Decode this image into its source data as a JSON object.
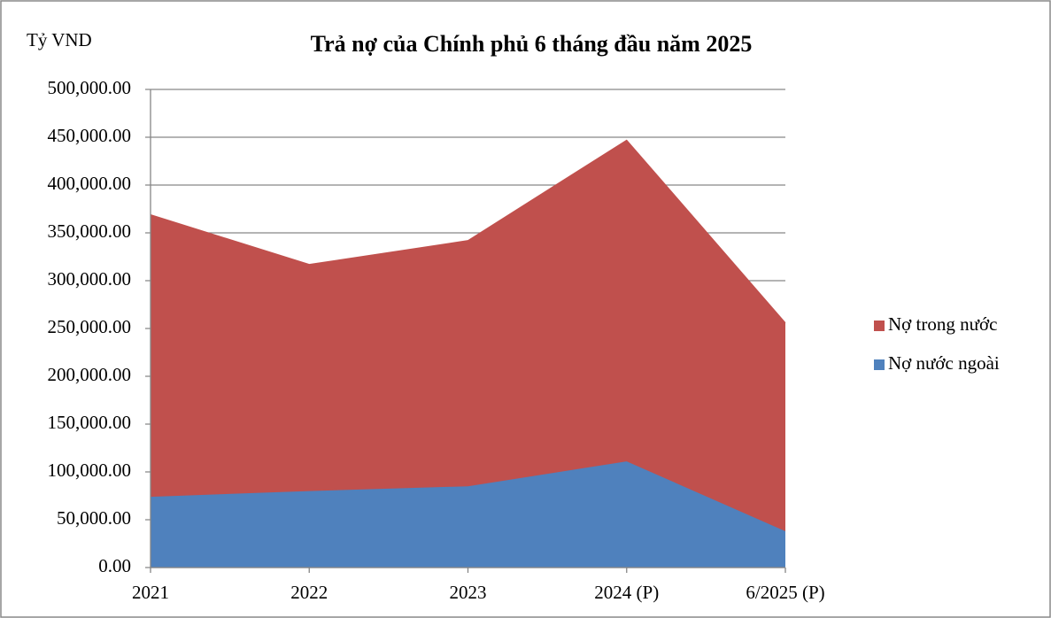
{
  "chart_data": {
    "type": "area",
    "title": "Trả nợ của Chính phủ 6 tháng đầu năm 2025",
    "y_label": "Tỷ VND",
    "categories": [
      "2021",
      "2022",
      "2023",
      "2024 (P)",
      "6/2025 (P)"
    ],
    "series": [
      {
        "name": "Nợ nước ngoài",
        "color": "#4f81bd",
        "values": [
          74000,
          80000,
          85000,
          111000,
          38000
        ]
      },
      {
        "name": "Nợ trong nước",
        "color": "#c0504d",
        "values": [
          295000,
          237000,
          257000,
          336000,
          218000
        ]
      }
    ],
    "stacked": true,
    "ylim": [
      0,
      500000
    ],
    "yticks": [
      {
        "value": 0,
        "label": "0.00"
      },
      {
        "value": 50000,
        "label": "50,000.00"
      },
      {
        "value": 100000,
        "label": "100,000.00"
      },
      {
        "value": 150000,
        "label": "150,000.00"
      },
      {
        "value": 200000,
        "label": "200,000.00"
      },
      {
        "value": 250000,
        "label": "250,000.00"
      },
      {
        "value": 300000,
        "label": "300,000.00"
      },
      {
        "value": 350000,
        "label": "350,000.00"
      },
      {
        "value": 400000,
        "label": "400,000.00"
      },
      {
        "value": 450000,
        "label": "450,000.00"
      },
      {
        "value": 500000,
        "label": "500,000.00"
      }
    ],
    "grid": true,
    "legend": "right"
  }
}
